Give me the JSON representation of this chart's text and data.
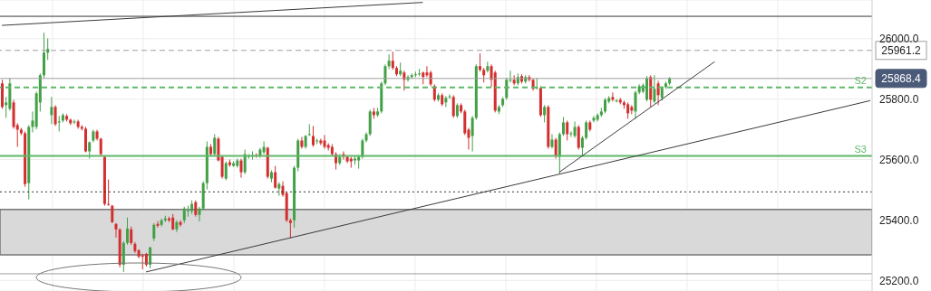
{
  "chart_data": {
    "type": "candlestick",
    "categories": [
      null,
      null,
      null,
      null,
      null,
      null,
      null,
      null,
      null,
      null,
      null,
      null,
      null,
      null,
      null,
      null,
      null,
      null,
      null,
      null,
      null,
      null,
      null,
      null,
      null,
      null,
      null,
      null,
      null,
      null,
      null,
      null,
      null,
      null,
      null,
      null,
      null,
      null,
      null,
      null,
      null,
      null,
      null,
      null,
      null,
      null,
      null,
      null,
      null,
      null,
      null,
      null,
      null,
      null,
      null,
      null,
      null,
      null,
      null,
      null,
      null,
      null,
      null,
      null,
      null,
      null,
      null,
      null,
      null,
      null,
      null,
      null,
      null,
      null,
      null,
      null,
      null,
      null,
      null,
      null,
      null,
      null,
      null,
      null,
      null,
      null,
      null,
      null,
      null,
      null,
      null,
      null,
      null,
      null,
      null,
      null,
      null,
      null,
      null,
      null,
      null,
      null,
      null,
      null,
      null,
      null,
      null,
      null,
      null,
      null,
      null,
      null,
      null,
      null,
      null,
      null,
      null,
      null,
      null,
      null,
      null,
      null,
      null,
      null,
      null,
      null,
      null,
      null,
      null,
      null,
      null,
      null,
      null,
      null,
      null,
      null,
      null,
      null,
      null,
      null,
      null,
      null,
      null,
      null,
      null,
      null,
      null,
      null,
      null,
      null,
      null,
      null,
      null,
      null,
      null,
      null,
      null,
      null,
      null,
      null,
      null,
      null,
      null,
      null,
      null,
      null,
      null,
      null,
      null,
      null,
      null,
      null,
      null,
      null,
      null,
      null,
      null,
      null,
      null,
      null,
      null,
      null,
      null,
      null,
      null,
      null,
      null,
      null,
      null,
      null,
      null,
      null,
      null,
      null,
      null,
      null,
      null,
      null,
      null,
      null,
      null,
      null,
      null,
      null,
      null,
      null,
      null,
      null,
      null,
      null,
      null,
      null,
      null,
      null,
      null,
      null,
      null,
      null,
      null,
      null,
      null,
      null,
      null,
      null,
      null,
      null,
      null,
      null,
      null,
      null
    ],
    "ohlc": [
      [
        25852,
        25864,
        25768,
        25774
      ],
      [
        25780,
        25807,
        25738,
        25789
      ],
      [
        25768,
        25870,
        25762,
        25852
      ],
      [
        25789,
        25798,
        25702,
        25708
      ],
      [
        25714,
        25720,
        25642,
        25699
      ],
      [
        25699,
        25705,
        25681,
        25687
      ],
      [
        25687,
        25693,
        25510,
        25519
      ],
      [
        25522,
        25714,
        25468,
        25708
      ],
      [
        25708,
        25759,
        25690,
        25729
      ],
      [
        25708,
        25825,
        25700,
        25819
      ],
      [
        25789,
        25885,
        25759,
        25879
      ],
      [
        25879,
        26020,
        25870,
        25954
      ],
      [
        25954,
        26001,
        25930,
        25966
      ],
      [
        25747,
        25807,
        25717,
        25774
      ],
      [
        25774,
        25780,
        25711,
        25717
      ],
      [
        25723,
        25744,
        25693,
        25726
      ],
      [
        25729,
        25753,
        25723,
        25747
      ],
      [
        25744,
        25750,
        25726,
        25732
      ],
      [
        25732,
        25735,
        25714,
        25720
      ],
      [
        25723,
        25732,
        25717,
        25726
      ],
      [
        25726,
        25732,
        25702,
        25708
      ],
      [
        25708,
        25714,
        25696,
        25702
      ],
      [
        25702,
        25708,
        25624,
        25627
      ],
      [
        25627,
        25660,
        25603,
        25657
      ],
      [
        25663,
        25699,
        25657,
        25693
      ],
      [
        25693,
        25699,
        25663,
        25669
      ],
      [
        25669,
        25672,
        25612,
        25618
      ],
      [
        25609,
        25612,
        25447,
        25453
      ],
      [
        25453,
        25534,
        25447,
        25450
      ],
      [
        25447,
        25450,
        25390,
        25393
      ],
      [
        25387,
        25390,
        25342,
        25369
      ],
      [
        25369,
        25372,
        25243,
        25252
      ],
      [
        25252,
        25330,
        25228,
        25324
      ],
      [
        25324,
        25408,
        25318,
        25372
      ],
      [
        25369,
        25378,
        25318,
        25324
      ],
      [
        25321,
        25327,
        25291,
        25297
      ],
      [
        25300,
        25303,
        25273,
        25279
      ],
      [
        25282,
        25288,
        25237,
        25280
      ],
      [
        25288,
        25291,
        25246,
        25252
      ],
      [
        25252,
        25312,
        25240,
        25309
      ],
      [
        25339,
        25390,
        25330,
        25384
      ],
      [
        25387,
        25396,
        25375,
        25381
      ],
      [
        25384,
        25405,
        25378,
        25399
      ],
      [
        25399,
        25414,
        25393,
        25405
      ],
      [
        25405,
        25411,
        25393,
        25399
      ],
      [
        25408,
        25420,
        25366,
        25369
      ],
      [
        25369,
        25399,
        25360,
        25393
      ],
      [
        25393,
        25399,
        25378,
        25384
      ],
      [
        25399,
        25444,
        25390,
        25438
      ],
      [
        25429,
        25447,
        25411,
        25432
      ],
      [
        25429,
        25465,
        25420,
        25453
      ],
      [
        25459,
        25465,
        25411,
        25417
      ],
      [
        25417,
        25444,
        25395,
        25438
      ],
      [
        25438,
        25528,
        25432,
        25522
      ],
      [
        25522,
        25660,
        25501,
        25642
      ],
      [
        25642,
        25651,
        25612,
        25618
      ],
      [
        25618,
        25684,
        25612,
        25672
      ],
      [
        25669,
        25675,
        25594,
        25597
      ],
      [
        25609,
        25612,
        25537,
        25543
      ],
      [
        25537,
        25594,
        25531,
        25588
      ],
      [
        25591,
        25600,
        25576,
        25582
      ],
      [
        25579,
        25594,
        25576,
        25588
      ],
      [
        25579,
        25603,
        25573,
        25597
      ],
      [
        25597,
        25603,
        25540,
        25558
      ],
      [
        25558,
        25633,
        25552,
        25618
      ],
      [
        25609,
        25618,
        25603,
        25612
      ],
      [
        25612,
        25627,
        25600,
        25615
      ],
      [
        25615,
        25621,
        25606,
        25612
      ],
      [
        25612,
        25639,
        25606,
        25633
      ],
      [
        25624,
        25660,
        25618,
        25642
      ],
      [
        25639,
        25642,
        25537,
        25543
      ],
      [
        25537,
        25564,
        25525,
        25558
      ],
      [
        25558,
        25579,
        25504,
        25507
      ],
      [
        25504,
        25525,
        25480,
        25519
      ],
      [
        25513,
        25528,
        25477,
        25483
      ],
      [
        25489,
        25492,
        25393,
        25399
      ],
      [
        25399,
        25405,
        25339,
        25390
      ],
      [
        25399,
        25579,
        25375,
        25573
      ],
      [
        25573,
        25669,
        25561,
        25663
      ],
      [
        25663,
        25675,
        25636,
        25642
      ],
      [
        25642,
        25681,
        25636,
        25678
      ],
      [
        25681,
        25717,
        25678,
        25684
      ],
      [
        25678,
        25711,
        25642,
        25648
      ],
      [
        25660,
        25669,
        25651,
        25663
      ],
      [
        25663,
        25669,
        25648,
        25654
      ],
      [
        25663,
        25681,
        25636,
        25642
      ],
      [
        25648,
        25654,
        25630,
        25639
      ],
      [
        25642,
        25651,
        25612,
        25618
      ],
      [
        25618,
        25624,
        25567,
        25588
      ],
      [
        25588,
        25618,
        25582,
        25609
      ],
      [
        25618,
        25627,
        25600,
        25609
      ],
      [
        25609,
        25612,
        25588,
        25594
      ],
      [
        25603,
        25609,
        25573,
        25594
      ],
      [
        25597,
        25612,
        25583,
        25603
      ],
      [
        25597,
        25615,
        25570,
        25609
      ],
      [
        25609,
        25669,
        25603,
        25663
      ],
      [
        25663,
        25690,
        25657,
        25684
      ],
      [
        25684,
        25765,
        25678,
        25759
      ],
      [
        25759,
        25771,
        25735,
        25747
      ],
      [
        25747,
        25771,
        25741,
        25759
      ],
      [
        25759,
        25858,
        25753,
        25852
      ],
      [
        25852,
        25915,
        25846,
        25909
      ],
      [
        25909,
        25948,
        25900,
        25927
      ],
      [
        25927,
        25957,
        25897,
        25903
      ],
      [
        25903,
        25909,
        25876,
        25882
      ],
      [
        25882,
        25921,
        25876,
        25894
      ],
      [
        25888,
        25894,
        25828,
        25864
      ],
      [
        25864,
        25879,
        25858,
        25873
      ],
      [
        25873,
        25885,
        25867,
        25879
      ],
      [
        25879,
        25891,
        25873,
        25882
      ],
      [
        25882,
        25900,
        25876,
        25885
      ],
      [
        25888,
        25891,
        25849,
        25873
      ],
      [
        25888,
        25909,
        25873,
        25879
      ],
      [
        25888,
        25894,
        25843,
        25849
      ],
      [
        25843,
        25849,
        25792,
        25798
      ],
      [
        25798,
        25819,
        25792,
        25813
      ],
      [
        25813,
        25819,
        25777,
        25783
      ],
      [
        25789,
        25810,
        25774,
        25804
      ],
      [
        25807,
        25816,
        25801,
        25809
      ],
      [
        25807,
        25813,
        25738,
        25744
      ],
      [
        25744,
        25786,
        25738,
        25780
      ],
      [
        25780,
        25786,
        25753,
        25759
      ],
      [
        25759,
        25765,
        25681,
        25687
      ],
      [
        25699,
        25705,
        25633,
        25672
      ],
      [
        25678,
        25744,
        25627,
        25738
      ],
      [
        25738,
        25915,
        25732,
        25909
      ],
      [
        25909,
        25951,
        25891,
        25897
      ],
      [
        25897,
        25903,
        25855,
        25879
      ],
      [
        25894,
        25924,
        25888,
        25909
      ],
      [
        25909,
        25915,
        25840,
        25864
      ],
      [
        25888,
        25894,
        25756,
        25762
      ],
      [
        25759,
        25780,
        25750,
        25774
      ],
      [
        25780,
        25807,
        25774,
        25801
      ],
      [
        25804,
        25870,
        25798,
        25864
      ],
      [
        25861,
        25894,
        25855,
        25864
      ],
      [
        25864,
        25879,
        25846,
        25852
      ],
      [
        25852,
        25885,
        25846,
        25873
      ],
      [
        25876,
        25882,
        25852,
        25858
      ],
      [
        25858,
        25879,
        25852,
        25873
      ],
      [
        25873,
        25879,
        25858,
        25864
      ],
      [
        25864,
        25867,
        25828,
        25834
      ],
      [
        25837,
        25870,
        25831,
        25839
      ],
      [
        25837,
        25843,
        25741,
        25747
      ],
      [
        25747,
        25780,
        25723,
        25774
      ],
      [
        25774,
        25780,
        25636,
        25642
      ],
      [
        25642,
        25684,
        25636,
        25666
      ],
      [
        25666,
        25672,
        25603,
        25612
      ],
      [
        25609,
        25690,
        25552,
        25684
      ],
      [
        25684,
        25741,
        25678,
        25723
      ],
      [
        25723,
        25729,
        25663,
        25684
      ],
      [
        25684,
        25693,
        25675,
        25687
      ],
      [
        25678,
        25726,
        25672,
        25708
      ],
      [
        25708,
        25714,
        25633,
        25639
      ],
      [
        25639,
        25678,
        25612,
        25672
      ],
      [
        25672,
        25729,
        25666,
        25723
      ],
      [
        25723,
        25729,
        25693,
        25699
      ],
      [
        25729,
        25744,
        25723,
        25738
      ],
      [
        25732,
        25753,
        25726,
        25747
      ],
      [
        25747,
        25771,
        25741,
        25759
      ],
      [
        25759,
        25804,
        25753,
        25798
      ],
      [
        25792,
        25810,
        25786,
        25804
      ],
      [
        25807,
        25822,
        25792,
        25798
      ],
      [
        25795,
        25801,
        25789,
        25795
      ],
      [
        25798,
        25804,
        25783,
        25789
      ],
      [
        25789,
        25795,
        25768,
        25780
      ],
      [
        25783,
        25789,
        25735,
        25753
      ],
      [
        25774,
        25780,
        25750,
        25762
      ],
      [
        25759,
        25828,
        25735,
        25822
      ],
      [
        25822,
        25849,
        25816,
        25843
      ],
      [
        25825,
        25852,
        25819,
        25846
      ],
      [
        25798,
        25876,
        25792,
        25870
      ],
      [
        25873,
        25879,
        25774,
        25798
      ],
      [
        25792,
        25879,
        25786,
        25834
      ],
      [
        25852,
        25861,
        25780,
        25813
      ],
      [
        25804,
        25843,
        25795,
        25837
      ],
      [
        25840,
        25858,
        25834,
        25852
      ],
      [
        25852,
        25873,
        25846,
        25868.4
      ],
      null,
      null,
      null,
      null,
      null,
      null,
      null,
      null,
      null,
      null,
      null,
      null,
      null,
      null,
      null,
      null,
      null,
      null,
      null,
      null,
      null,
      null,
      null,
      null,
      null,
      null,
      null,
      null,
      null,
      null,
      null,
      null,
      null,
      null,
      null,
      null,
      null,
      null,
      null,
      null,
      null,
      null,
      null,
      null,
      null,
      null,
      null,
      null,
      null,
      null,
      null,
      null,
      null
    ],
    "series": [
      {
        "type": "line",
        "color": "#3a3a3a",
        "values": [
          null,
          null,
          null,
          null,
          null,
          null,
          null,
          null,
          null,
          null,
          null,
          null,
          null,
          null,
          null,
          null,
          null,
          null,
          null,
          null,
          null,
          null,
          null,
          null,
          null,
          null,
          null,
          null,
          null,
          null,
          null,
          null,
          null,
          null,
          null,
          null,
          null,
          null,
          25228,
          null,
          null,
          null,
          null,
          null,
          null,
          null,
          null,
          null,
          null,
          null,
          null,
          null,
          null,
          null,
          null,
          null,
          null,
          null,
          null,
          null,
          null,
          null,
          null,
          null,
          null,
          null,
          null,
          null,
          null,
          null,
          null,
          null,
          null,
          null,
          null,
          null,
          null,
          null,
          null,
          null,
          null,
          null,
          null,
          null,
          null,
          null,
          null,
          null,
          null,
          null,
          null,
          null,
          null,
          null,
          null,
          null,
          null,
          null,
          null,
          null,
          null,
          null,
          null,
          null,
          null,
          null,
          null,
          null,
          null,
          null,
          null,
          null,
          null,
          null,
          null,
          null,
          null,
          null,
          null,
          null,
          null,
          null,
          null,
          null,
          null,
          null,
          null,
          null,
          null,
          null,
          null,
          null,
          null,
          null,
          null,
          null,
          null,
          null,
          null,
          null,
          null,
          null,
          null,
          null,
          null,
          null,
          null,
          null,
          null,
          null,
          null,
          null,
          null,
          null,
          null,
          null,
          null,
          null,
          null,
          null,
          null,
          null,
          null,
          null,
          null,
          null,
          null,
          null,
          null,
          null,
          null,
          null,
          null,
          null,
          null,
          null,
          null,
          null,
          null,
          null,
          null,
          null,
          null,
          null,
          null,
          null,
          null,
          null,
          null,
          null,
          null,
          null,
          null,
          null,
          null,
          null,
          null,
          null,
          null,
          null,
          null,
          null,
          null,
          null,
          null,
          null,
          null,
          null,
          null,
          null,
          null,
          null,
          null,
          null,
          null,
          null,
          null,
          null,
          null,
          null,
          null,
          null,
          null,
          null,
          null,
          null,
          null,
          null,
          null,
          25795
        ]
      },
      {
        "type": "line",
        "color": "#3a3a3a",
        "values": [
          null,
          null,
          null,
          null,
          null,
          null,
          null,
          null,
          null,
          null,
          null,
          null,
          null,
          null,
          null,
          null,
          null,
          null,
          null,
          null,
          null,
          null,
          null,
          null,
          null,
          null,
          null,
          null,
          null,
          null,
          null,
          null,
          null,
          null,
          null,
          null,
          null,
          null,
          null,
          null,
          null,
          null,
          null,
          null,
          null,
          null,
          null,
          null,
          null,
          null,
          null,
          null,
          null,
          null,
          null,
          null,
          null,
          null,
          null,
          null,
          null,
          null,
          null,
          null,
          null,
          null,
          null,
          null,
          null,
          null,
          null,
          null,
          null,
          null,
          null,
          null,
          null,
          null,
          null,
          null,
          null,
          null,
          null,
          null,
          null,
          null,
          null,
          null,
          null,
          null,
          null,
          null,
          null,
          null,
          null,
          null,
          null,
          null,
          null,
          null,
          null,
          null,
          null,
          null,
          null,
          null,
          null,
          null,
          null,
          null,
          null,
          null,
          null,
          null,
          null,
          null,
          null,
          null,
          null,
          null,
          null,
          null,
          null,
          null,
          null,
          null,
          null,
          null,
          null,
          null,
          null,
          null,
          null,
          null,
          null,
          null,
          null,
          null,
          null,
          null,
          null,
          null,
          null,
          null,
          null,
          null,
          null,
          25558,
          null,
          null,
          null,
          null,
          null,
          null,
          null,
          null,
          null,
          null,
          null,
          null,
          null,
          null,
          null,
          null,
          null,
          null,
          null,
          null,
          null,
          null,
          null,
          null,
          null,
          null,
          null,
          null,
          null,
          null,
          null,
          null,
          null,
          null,
          null,
          null,
          null,
          null,
          null,
          null,
          25924,
          null,
          null,
          null,
          null,
          null,
          null,
          null,
          null,
          null,
          null,
          null,
          null,
          null,
          null,
          null,
          null,
          null,
          null,
          null,
          null,
          null,
          null,
          null,
          null,
          null,
          null,
          null,
          null,
          null,
          null,
          null,
          null,
          null,
          null,
          null,
          null,
          null,
          null,
          null,
          null,
          null
        ]
      },
      {
        "type": "line",
        "color": "#3a3a3a",
        "values": [
          26044,
          null,
          null,
          null,
          null,
          null,
          null,
          null,
          null,
          null,
          null,
          null,
          null,
          null,
          null,
          null,
          null,
          null,
          null,
          null,
          null,
          null,
          null,
          null,
          null,
          null,
          null,
          null,
          null,
          null,
          null,
          null,
          null,
          null,
          null,
          null,
          null,
          null,
          null,
          null,
          null,
          null,
          null,
          null,
          null,
          null,
          null,
          null,
          null,
          null,
          null,
          null,
          null,
          null,
          null,
          null,
          null,
          null,
          null,
          null,
          null,
          null,
          null,
          null,
          null,
          null,
          null,
          null,
          null,
          null,
          null,
          null,
          null,
          null,
          null,
          null,
          null,
          null,
          null,
          null,
          null,
          null,
          null,
          null,
          null,
          null,
          null,
          null,
          null,
          null,
          null,
          null,
          null,
          null,
          null,
          null,
          null,
          null,
          null,
          null,
          null,
          null,
          null,
          null,
          null,
          null,
          null,
          null,
          null,
          null,
          null,
          26120,
          null,
          null,
          null,
          null,
          null,
          null,
          null,
          null,
          null,
          null,
          null,
          null,
          null,
          null,
          null,
          null,
          null,
          null,
          null,
          null,
          null,
          null,
          null,
          null,
          null,
          null,
          null,
          null,
          null,
          null,
          null,
          null,
          null,
          null,
          null,
          null,
          null,
          null,
          null,
          null,
          null,
          null,
          null,
          null,
          null,
          null,
          null,
          null,
          null,
          null,
          null,
          null,
          null,
          null,
          null,
          null,
          null,
          null,
          null,
          null,
          null,
          null,
          null,
          null,
          null,
          null,
          null,
          null,
          null,
          null,
          null,
          null,
          null,
          null,
          null,
          null,
          null,
          null,
          null,
          null,
          null,
          null,
          null,
          null,
          null,
          null,
          null,
          null,
          null,
          null,
          null,
          null,
          null,
          null,
          null,
          null,
          null,
          null,
          null,
          null,
          null,
          null,
          null,
          null,
          null,
          null,
          null,
          null,
          null,
          null,
          null,
          null,
          null,
          null,
          null,
          null,
          null,
          null
        ]
      }
    ],
    "ylim": [
      25165,
      26128
    ],
    "yticks": [
      {
        "value": 25200,
        "label": "25200.0"
      },
      {
        "value": 25400,
        "label": "25400.0"
      },
      {
        "value": 25600,
        "label": "25600.0"
      },
      {
        "value": 25800,
        "label": "25800.0"
      },
      {
        "value": 26000,
        "label": "26000.0"
      }
    ],
    "tick_labels": "y",
    "grid": true,
    "ref_lines": [
      {
        "axis": "y",
        "value": 26074,
        "color": "#333333",
        "line_style": "solid"
      },
      {
        "axis": "y",
        "value": 25961.2,
        "label": "25961.2",
        "color": "#9e9e9e",
        "line_style": "dashed"
      },
      {
        "axis": "y",
        "value": 25868.4,
        "label": "25868.4",
        "color": "#9e9e9e",
        "line_style": "solid"
      },
      {
        "axis": "y",
        "value": 25839,
        "color": "#5fb86a",
        "line_style": "dashed"
      },
      {
        "axis": "y",
        "value": 25612,
        "color": "#5fb86a",
        "line_style": "solid"
      },
      {
        "axis": "y",
        "value": 25493,
        "color": "#333333",
        "line_style": "dotted"
      },
      {
        "axis": "y",
        "value": 25222,
        "color": "#9e9e9e",
        "line_style": "solid"
      }
    ],
    "bands": [
      {
        "axis": "y",
        "from": 25285,
        "to": 25435,
        "color": "#d9d9d9"
      }
    ],
    "annotations": [
      {
        "text": "S2",
        "y": 25839
      },
      {
        "text": "S3",
        "y": 25612
      }
    ]
  }
}
